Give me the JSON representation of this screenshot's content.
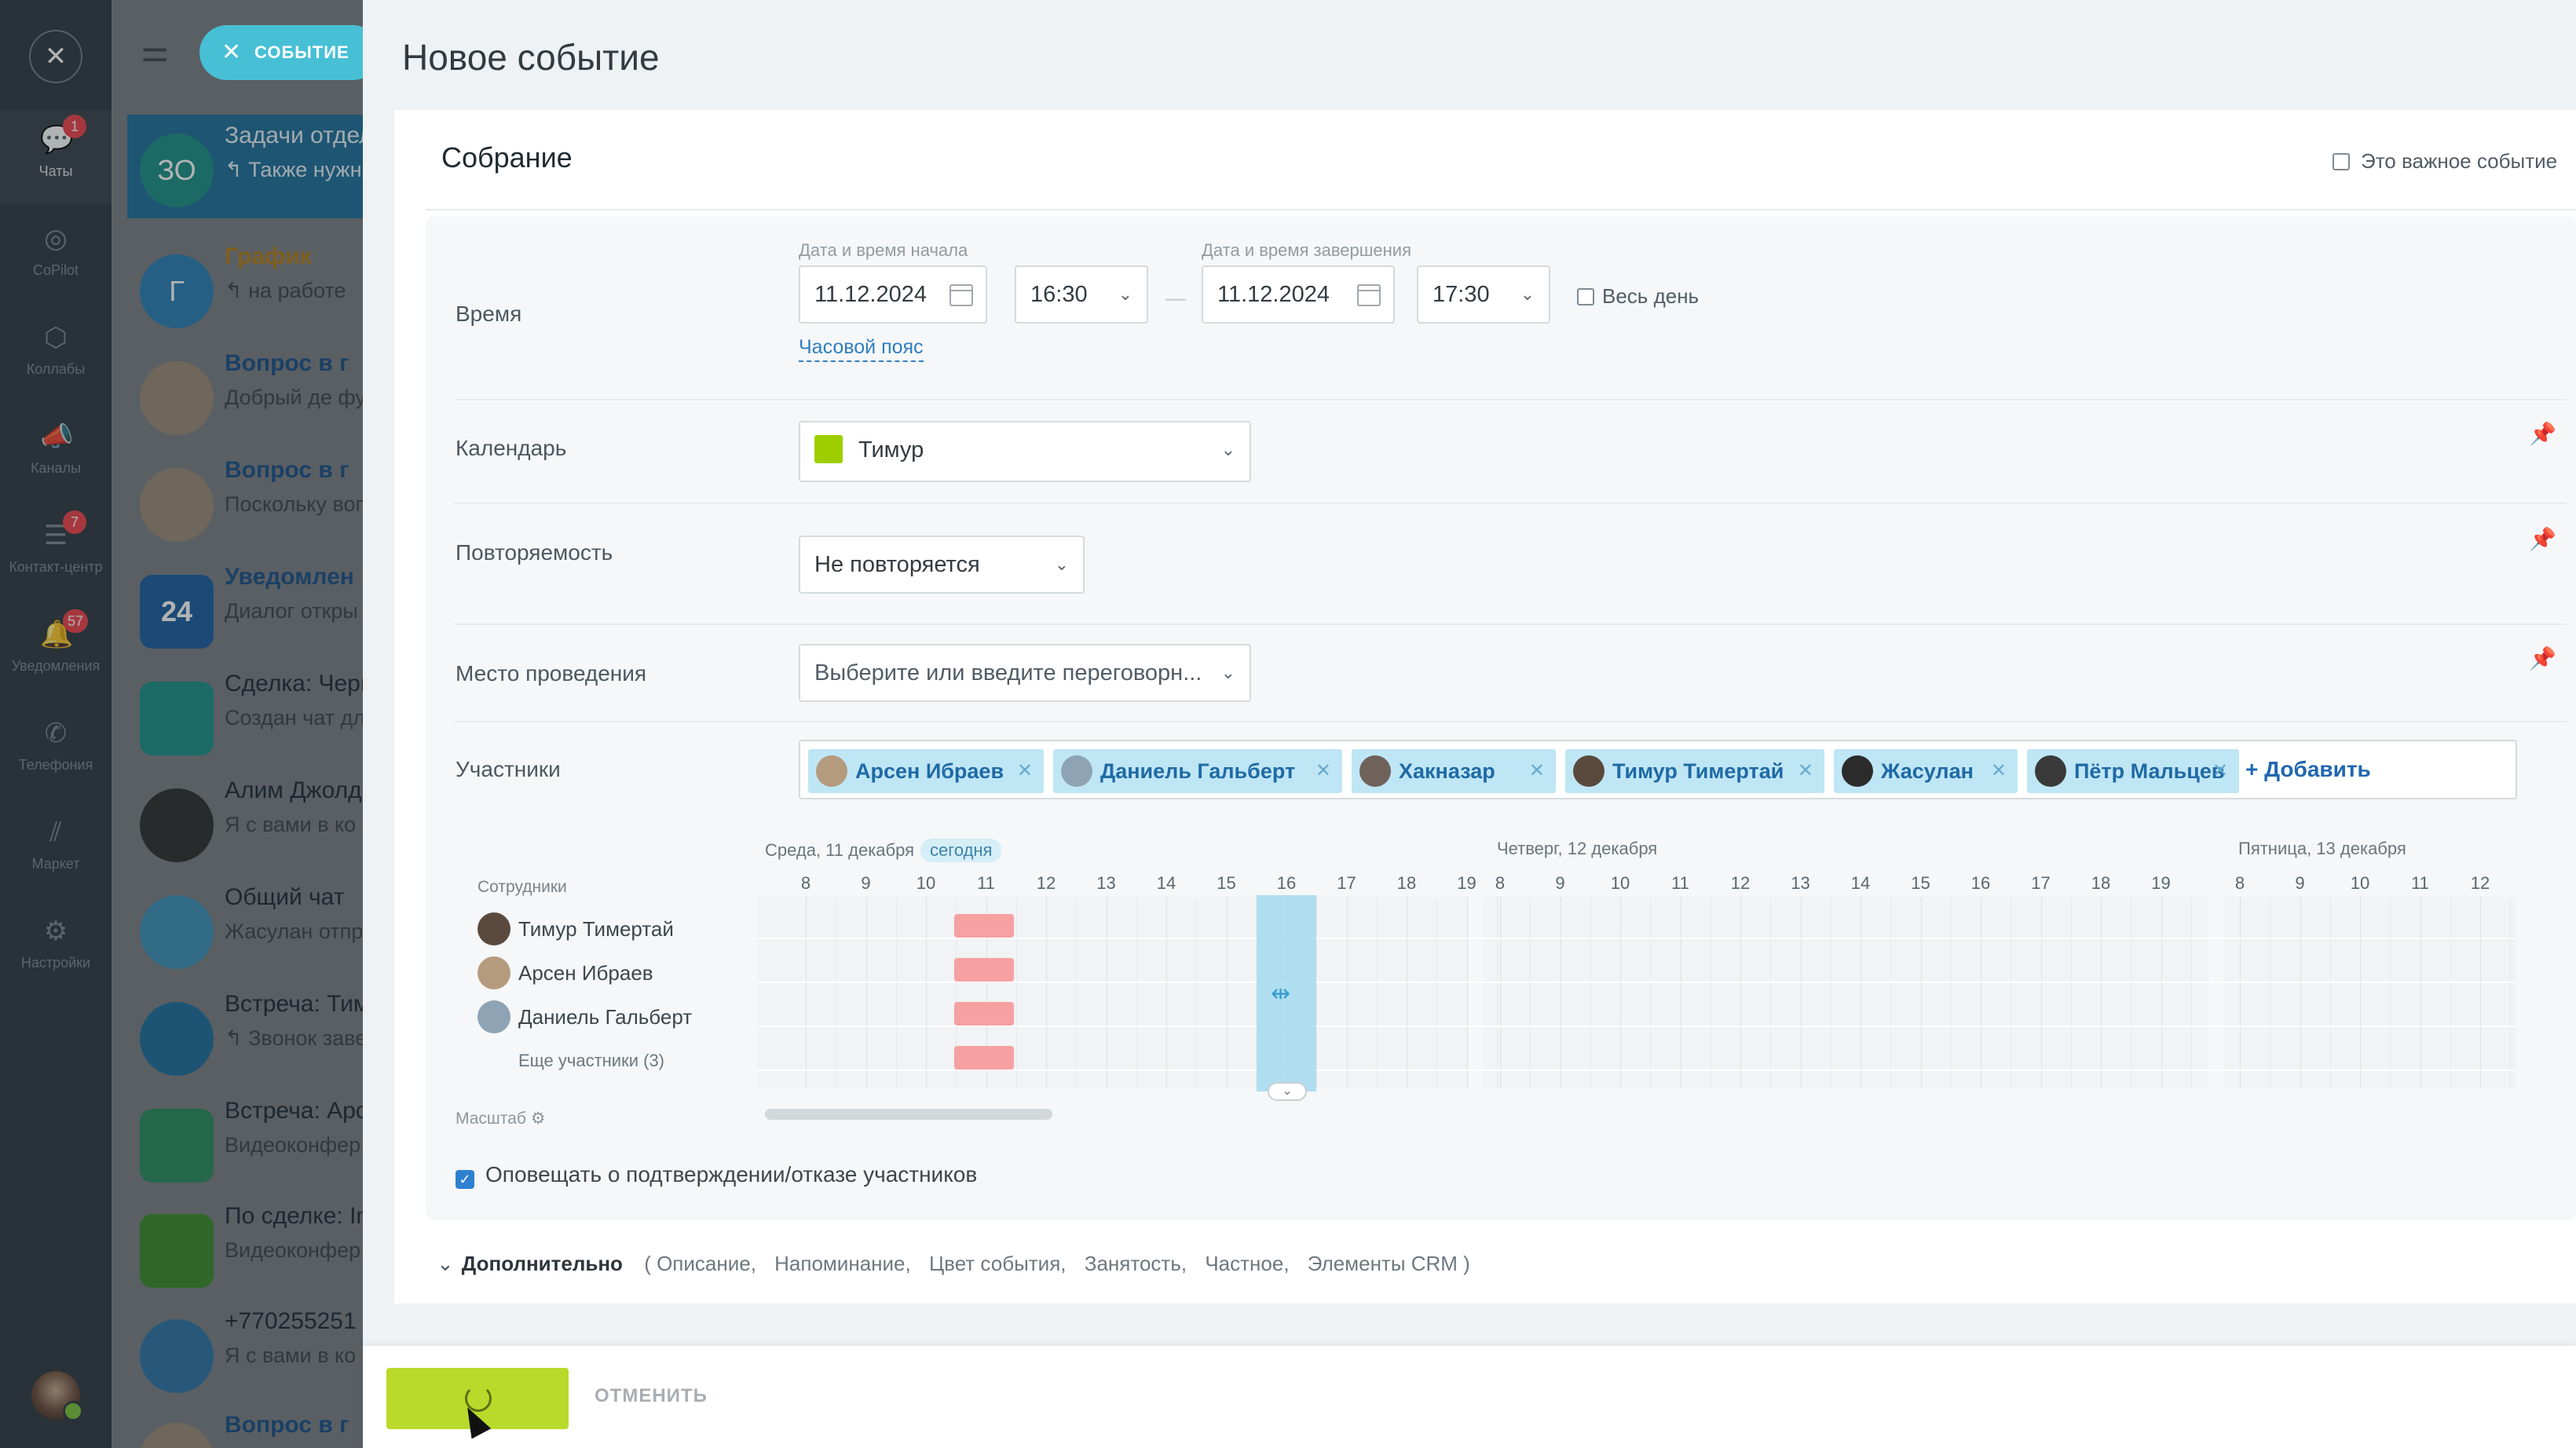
{
  "nav": {
    "items": [
      {
        "label": "Чаты",
        "badge": "1"
      },
      {
        "label": "CoPilot",
        "badge": ""
      },
      {
        "label": "Коллабы",
        "badge": ""
      },
      {
        "label": "Каналы",
        "badge": ""
      },
      {
        "label": "Контакт-центр",
        "badge": "7"
      },
      {
        "label": "Уведомления",
        "badge": "57"
      },
      {
        "label": "Телефония",
        "badge": ""
      },
      {
        "label": "Маркет",
        "badge": ""
      },
      {
        "label": "Настройки",
        "badge": ""
      }
    ]
  },
  "chatlist": {
    "event_button": "СОБЫТИЕ",
    "items": [
      {
        "avatar": "ЗО",
        "title": "Задачи отдел",
        "sub": "↰ Также нужн проектам"
      },
      {
        "avatar": "Г",
        "title": "График",
        "sub": "↰ на работе"
      },
      {
        "avatar": "",
        "title": "Вопрос в г",
        "sub": "Добрый де функционал н"
      },
      {
        "avatar": "",
        "title": "Вопрос в г",
        "sub": "Поскольку вопрос, я созд"
      },
      {
        "avatar": "24",
        "title": "Уведомлен",
        "sub": "Диалог откры"
      },
      {
        "avatar": "",
        "title": "Сделка: Черн",
        "sub": "Создан чат дл [Вложение]"
      },
      {
        "avatar": "",
        "title": "Алим Джолд",
        "sub": "Я с вами в ко"
      },
      {
        "avatar": "",
        "title": "Общий чат",
        "sub": "Жасулан отпр Джолдаспаев"
      },
      {
        "avatar": "",
        "title": "Встреча: Тим",
        "sub": "↰ Звонок заве"
      },
      {
        "avatar": "",
        "title": "Встреча: Арс",
        "sub": "Видеоконфер на конференц"
      },
      {
        "avatar": "",
        "title": "По сделке: In",
        "sub": "Видеоконфер на конференц"
      },
      {
        "avatar": "",
        "title": "+770255251",
        "sub": "Я с вами в ко"
      },
      {
        "avatar": "",
        "title": "Вопрос в г",
        "sub": ""
      }
    ]
  },
  "panel": {
    "title": "Новое событие",
    "event_name": "Собрание",
    "important_label": "Это важное событие"
  },
  "form": {
    "time": {
      "label": "Время",
      "start_label": "Дата и время начала",
      "start_date": "11.12.2024",
      "start_time": "16:30",
      "end_label": "Дата и время завершения",
      "end_date": "11.12.2024",
      "end_time": "17:30",
      "all_day": "Весь день",
      "timezone_link": "Часовой пояс",
      "dash": "—"
    },
    "calendar": {
      "label": "Календарь",
      "value": "Тимур"
    },
    "repeat": {
      "label": "Повторяемость",
      "value": "Не повторяется"
    },
    "location": {
      "label": "Место проведения",
      "placeholder": "Выберите или введите переговорн..."
    },
    "attendees": {
      "label": "Участники",
      "chips": [
        "Арсен Ибраев",
        "Даниель Гальберт",
        "Хакназар",
        "Тимур Тимертай",
        "Жасулан",
        "Пётр Мальцев"
      ],
      "add": "+ Добавить"
    }
  },
  "planner": {
    "staff_header": "Сотрудники",
    "days": [
      "Среда, 11 декабря",
      "Четверг, 12 декабря",
      "Пятница, 13 декабря"
    ],
    "today_badge": "сегодня",
    "hours_day1": [
      "8",
      "9",
      "10",
      "11",
      "12",
      "13",
      "14",
      "15",
      "16",
      "17",
      "18",
      "19"
    ],
    "hours_day2": [
      "8",
      "9",
      "10",
      "11",
      "12",
      "13",
      "14",
      "15",
      "16",
      "17",
      "18",
      "19"
    ],
    "hours_day3": [
      "8",
      "9",
      "10",
      "11",
      "12"
    ],
    "staff": [
      "Тимур Тимертай",
      "Арсен Ибраев",
      "Даниель Гальберт"
    ],
    "more": "Еще участники (3)",
    "scale_label": "Масштаб"
  },
  "notify": {
    "label": "Оповещать о подтверждении/отказе участников",
    "checked": true
  },
  "extra": {
    "label": "Дополнительно",
    "items": [
      "( Описание,",
      "Напоминание,",
      "Цвет события,",
      "Занятость,",
      "Частное,",
      "Элементы CRM )"
    ]
  },
  "footer": {
    "cancel": "ОТМЕНИТЬ"
  },
  "colors": {
    "accent": "#47c0d6",
    "save": "#b9da2a",
    "busy": "#f6a0a2",
    "selection": "#a5d9f0",
    "link": "#2f7ec1"
  }
}
